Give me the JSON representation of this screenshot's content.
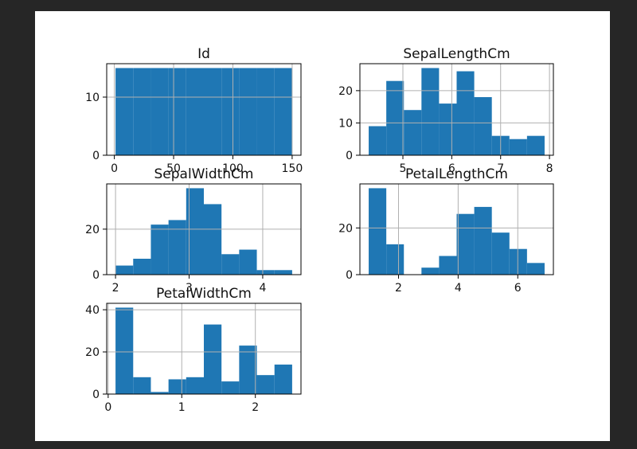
{
  "figure": {
    "background": "#ffffff",
    "page_background": "#262626"
  },
  "chart_data": [
    {
      "type": "bar",
      "title": "Id",
      "bin_edges": [
        1,
        15.9,
        30.8,
        45.7,
        60.6,
        75.5,
        90.4,
        105.3,
        120.2,
        135.1,
        150
      ],
      "values": [
        15,
        15,
        15,
        15,
        15,
        15,
        15,
        15,
        15,
        15
      ],
      "xlim": [
        -6.45,
        157.45
      ],
      "ylim": [
        0,
        15.75
      ],
      "xticks": [
        0,
        50,
        100,
        150
      ],
      "xtick_labels": [
        "0",
        "50",
        "100",
        "150"
      ],
      "yticks": [
        0,
        10
      ],
      "ytick_labels": [
        "0",
        "10"
      ],
      "grid": true,
      "color": "#1f77b4"
    },
    {
      "type": "bar",
      "title": "SepalLengthCm",
      "bin_edges": [
        4.3,
        4.66,
        5.02,
        5.38,
        5.74,
        6.1,
        6.46,
        6.82,
        7.18,
        7.54,
        7.9
      ],
      "values": [
        9,
        23,
        14,
        27,
        16,
        26,
        18,
        6,
        5,
        6
      ],
      "xlim": [
        4.12,
        8.08
      ],
      "ylim": [
        0,
        28.35
      ],
      "xticks": [
        5,
        6,
        7,
        8
      ],
      "xtick_labels": [
        "5",
        "6",
        "7",
        "8"
      ],
      "yticks": [
        0,
        10,
        20
      ],
      "ytick_labels": [
        "0",
        "10",
        "20"
      ],
      "grid": true,
      "color": "#1f77b4"
    },
    {
      "type": "bar",
      "title": "SepalWidthCm",
      "bin_edges": [
        2.0,
        2.24,
        2.48,
        2.72,
        2.96,
        3.2,
        3.44,
        3.68,
        3.92,
        4.16,
        4.4
      ],
      "values": [
        4,
        7,
        22,
        24,
        38,
        31,
        9,
        11,
        2,
        2
      ],
      "xlim": [
        1.88,
        4.52
      ],
      "ylim": [
        0,
        39.9
      ],
      "xticks": [
        2,
        3,
        4
      ],
      "xtick_labels": [
        "2",
        "3",
        "4"
      ],
      "yticks": [
        0,
        20
      ],
      "ytick_labels": [
        "0",
        "20"
      ],
      "grid": true,
      "color": "#1f77b4"
    },
    {
      "type": "bar",
      "title": "PetalLengthCm",
      "bin_edges": [
        1.0,
        1.59,
        2.18,
        2.77,
        3.36,
        3.95,
        4.54,
        5.13,
        5.72,
        6.31,
        6.9
      ],
      "values": [
        37,
        13,
        0,
        3,
        8,
        26,
        29,
        18,
        11,
        5
      ],
      "xlim": [
        0.705,
        7.195
      ],
      "ylim": [
        0,
        38.85
      ],
      "xticks": [
        2,
        4,
        6
      ],
      "xtick_labels": [
        "2",
        "4",
        "6"
      ],
      "yticks": [
        0,
        20
      ],
      "ytick_labels": [
        "0",
        "20"
      ],
      "grid": true,
      "color": "#1f77b4"
    },
    {
      "type": "bar",
      "title": "PetalWidthCm",
      "bin_edges": [
        0.1,
        0.34,
        0.58,
        0.82,
        1.06,
        1.3,
        1.54,
        1.78,
        2.02,
        2.26,
        2.5
      ],
      "values": [
        41,
        8,
        1,
        7,
        8,
        33,
        6,
        23,
        9,
        14
      ],
      "xlim": [
        -0.02,
        2.62
      ],
      "ylim": [
        0,
        43.05
      ],
      "xticks": [
        0,
        1,
        2
      ],
      "xtick_labels": [
        "0",
        "1",
        "2"
      ],
      "yticks": [
        0,
        20,
        40
      ],
      "ytick_labels": [
        "0",
        "20",
        "40"
      ],
      "grid": true,
      "color": "#1f77b4"
    }
  ]
}
